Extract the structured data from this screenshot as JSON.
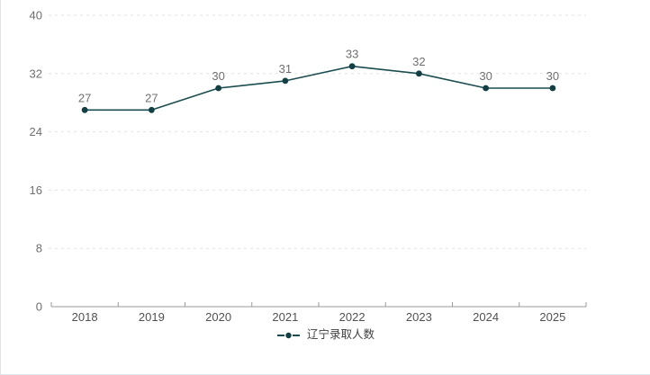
{
  "chart_data": {
    "type": "line",
    "title": "",
    "categories": [
      "2018",
      "2019",
      "2020",
      "2021",
      "2022",
      "2023",
      "2024",
      "2025"
    ],
    "series": [
      {
        "name": "辽宁录取人数",
        "values": [
          27,
          27,
          30,
          31,
          33,
          32,
          30,
          30
        ]
      }
    ],
    "xlabel": "",
    "ylabel": "",
    "ylim": [
      0,
      40
    ],
    "y_ticks": [
      0,
      8,
      16,
      24,
      32,
      40
    ],
    "grid": "horizontal-dashed",
    "legend_position": "bottom-center",
    "data_labels": true
  },
  "colors": {
    "series_line": "#1b4d50",
    "series_point": "#123f43",
    "grid_line": "#e3e3e3",
    "axis_line": "#9a9a9a",
    "y_label": "#6f6f73",
    "x_label": "#515151",
    "data_label": "#707070",
    "legend_text": "#404040"
  }
}
